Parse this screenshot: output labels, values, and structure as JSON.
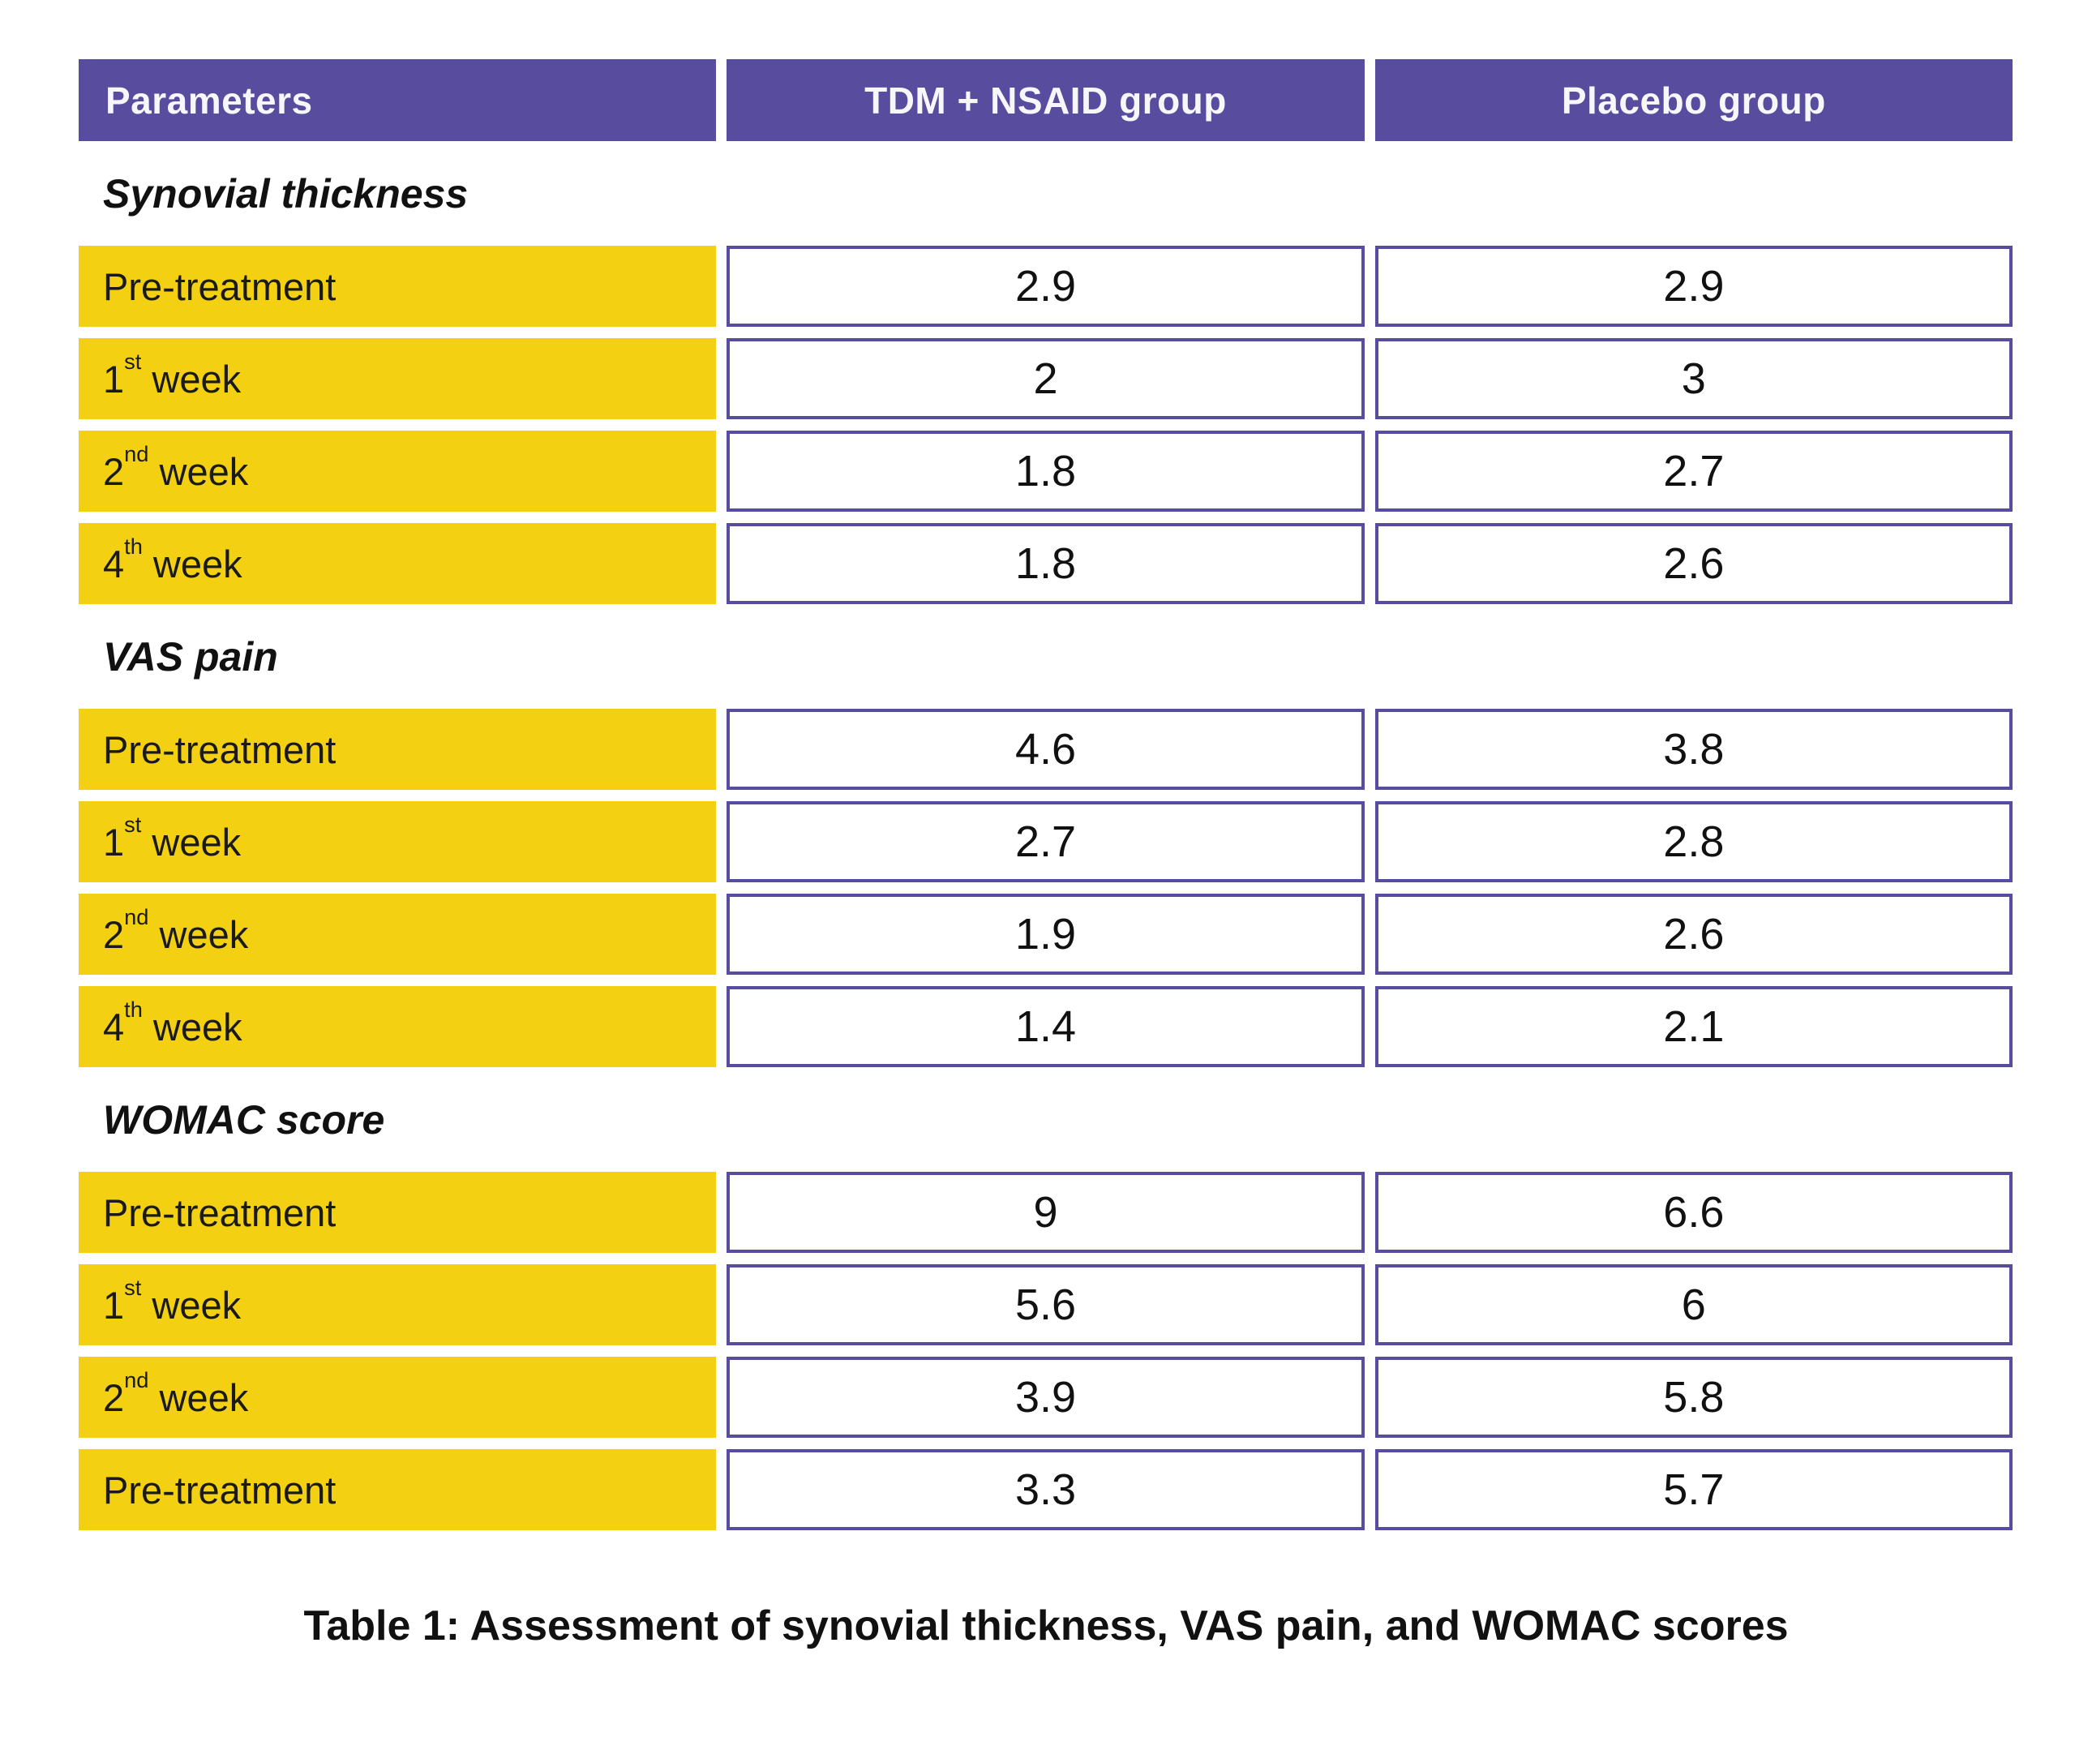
{
  "colors": {
    "header_purple": "#584C9E",
    "row_yellow": "#F3D112",
    "cell_border_purple": "#584C9E"
  },
  "chart_data": {
    "type": "table",
    "title": "Table 1: Assessment of synovial thickness, VAS pain, and WOMAC scores",
    "columns": [
      "Parameters",
      "TDM + NSAID group",
      "Placebo group"
    ],
    "sections": [
      {
        "title": "Synovial thickness",
        "rows": [
          {
            "label_base": "Pre-treatment",
            "label_sup": "",
            "label_rest": "",
            "tdm": "2.9",
            "placebo": "2.9"
          },
          {
            "label_base": "1",
            "label_sup": "st",
            "label_rest": " week",
            "tdm": "2",
            "placebo": "3"
          },
          {
            "label_base": "2",
            "label_sup": "nd",
            "label_rest": " week",
            "tdm": "1.8",
            "placebo": "2.7"
          },
          {
            "label_base": "4",
            "label_sup": "th",
            "label_rest": " week",
            "tdm": "1.8",
            "placebo": "2.6"
          }
        ]
      },
      {
        "title": "VAS pain",
        "rows": [
          {
            "label_base": "Pre-treatment",
            "label_sup": "",
            "label_rest": "",
            "tdm": "4.6",
            "placebo": "3.8"
          },
          {
            "label_base": "1",
            "label_sup": "st",
            "label_rest": " week",
            "tdm": "2.7",
            "placebo": "2.8"
          },
          {
            "label_base": "2",
            "label_sup": "nd",
            "label_rest": " week",
            "tdm": "1.9",
            "placebo": "2.6"
          },
          {
            "label_base": "4",
            "label_sup": "th",
            "label_rest": " week",
            "tdm": "1.4",
            "placebo": "2.1"
          }
        ]
      },
      {
        "title": "WOMAC score",
        "rows": [
          {
            "label_base": "Pre-treatment",
            "label_sup": "",
            "label_rest": "",
            "tdm": "9",
            "placebo": "6.6"
          },
          {
            "label_base": "1",
            "label_sup": "st",
            "label_rest": " week",
            "tdm": "5.6",
            "placebo": "6"
          },
          {
            "label_base": "2",
            "label_sup": "nd",
            "label_rest": " week",
            "tdm": "3.9",
            "placebo": "5.8"
          },
          {
            "label_base": "Pre-treatment",
            "label_sup": "",
            "label_rest": "",
            "tdm": "3.3",
            "placebo": "5.7"
          }
        ]
      }
    ]
  }
}
